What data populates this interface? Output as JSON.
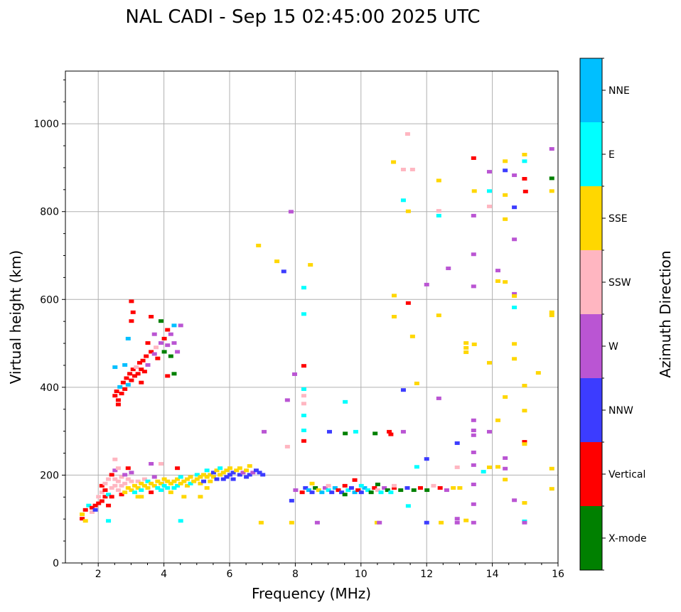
{
  "chart_data": {
    "type": "scatter",
    "title": "NAL CADI - Sep 15 02:45:00 2025 UTC",
    "xlabel": "Frequency (MHz)",
    "ylabel": "Virtual height (km)",
    "xlim": [
      1,
      16
    ],
    "ylim": [
      0,
      1120
    ],
    "xticks": [
      2,
      4,
      6,
      8,
      10,
      12,
      14,
      16
    ],
    "yticks": [
      0,
      200,
      400,
      600,
      800,
      1000
    ],
    "grid": true,
    "colorbar": {
      "label": "Azimuth Direction",
      "placement": "right",
      "categories": [
        {
          "name": "X-mode",
          "color": "#008000"
        },
        {
          "name": "Vertical",
          "color": "#ff0000"
        },
        {
          "name": "NNW",
          "color": "#3c3cff"
        },
        {
          "name": "W",
          "color": "#ba55d3"
        },
        {
          "name": "SSW",
          "color": "#ffb6c1"
        },
        {
          "name": "SSE",
          "color": "#ffd700"
        },
        {
          "name": "E",
          "color": "#00ffff"
        },
        {
          "name": "NNE",
          "color": "#00bfff"
        }
      ]
    },
    "point_format": [
      "frequency_MHz",
      "height_km",
      "category_index"
    ],
    "points": [
      [
        1.5,
        100,
        1
      ],
      [
        1.5,
        110,
        5
      ],
      [
        1.6,
        95,
        5
      ],
      [
        1.6,
        120,
        1
      ],
      [
        1.7,
        130,
        6
      ],
      [
        1.8,
        125,
        1
      ],
      [
        1.8,
        115,
        4
      ],
      [
        1.9,
        130,
        1
      ],
      [
        1.9,
        120,
        2
      ],
      [
        2.0,
        135,
        1
      ],
      [
        2.0,
        150,
        4
      ],
      [
        2.1,
        140,
        1
      ],
      [
        2.1,
        160,
        4
      ],
      [
        2.1,
        175,
        1
      ],
      [
        2.2,
        150,
        1
      ],
      [
        2.2,
        180,
        4
      ],
      [
        2.2,
        165,
        1
      ],
      [
        2.3,
        155,
        6
      ],
      [
        2.3,
        190,
        4
      ],
      [
        2.3,
        130,
        1
      ],
      [
        2.4,
        170,
        4
      ],
      [
        2.4,
        200,
        1
      ],
      [
        2.4,
        150,
        1
      ],
      [
        2.5,
        175,
        4
      ],
      [
        2.5,
        190,
        4
      ],
      [
        2.5,
        210,
        3
      ],
      [
        2.6,
        165,
        4
      ],
      [
        2.6,
        185,
        4
      ],
      [
        2.6,
        215,
        4
      ],
      [
        2.7,
        155,
        1
      ],
      [
        2.7,
        175,
        4
      ],
      [
        2.7,
        195,
        4
      ],
      [
        2.8,
        160,
        5
      ],
      [
        2.8,
        180,
        4
      ],
      [
        2.8,
        200,
        3
      ],
      [
        2.9,
        170,
        5
      ],
      [
        2.9,
        190,
        4
      ],
      [
        2.9,
        215,
        1
      ],
      [
        3.0,
        165,
        5
      ],
      [
        3.0,
        185,
        4
      ],
      [
        3.0,
        205,
        3
      ],
      [
        3.1,
        175,
        5
      ],
      [
        3.1,
        160,
        6
      ],
      [
        3.2,
        170,
        5
      ],
      [
        3.2,
        185,
        4
      ],
      [
        3.2,
        150,
        5
      ],
      [
        3.3,
        180,
        5
      ],
      [
        3.3,
        165,
        6
      ],
      [
        3.4,
        175,
        5
      ],
      [
        3.4,
        190,
        4
      ],
      [
        3.5,
        170,
        5
      ],
      [
        3.5,
        185,
        6
      ],
      [
        3.6,
        180,
        5
      ],
      [
        3.6,
        160,
        1
      ],
      [
        3.7,
        175,
        5
      ],
      [
        3.7,
        195,
        3
      ],
      [
        3.8,
        170,
        6
      ],
      [
        3.8,
        185,
        5
      ],
      [
        3.9,
        180,
        5
      ],
      [
        3.9,
        165,
        6
      ],
      [
        4.0,
        175,
        6
      ],
      [
        4.0,
        190,
        5
      ],
      [
        4.1,
        170,
        6
      ],
      [
        4.1,
        185,
        5
      ],
      [
        4.2,
        180,
        5
      ],
      [
        4.2,
        160,
        5
      ],
      [
        4.3,
        185,
        5
      ],
      [
        4.3,
        170,
        6
      ],
      [
        4.4,
        175,
        6
      ],
      [
        4.4,
        190,
        5
      ],
      [
        4.5,
        180,
        5
      ],
      [
        4.5,
        195,
        6
      ],
      [
        4.6,
        185,
        5
      ],
      [
        4.7,
        190,
        5
      ],
      [
        4.7,
        175,
        5
      ],
      [
        4.8,
        195,
        5
      ],
      [
        4.8,
        180,
        6
      ],
      [
        4.9,
        185,
        5
      ],
      [
        5.0,
        190,
        5
      ],
      [
        5.0,
        200,
        6
      ],
      [
        5.1,
        180,
        5
      ],
      [
        5.1,
        195,
        5
      ],
      [
        5.2,
        200,
        5
      ],
      [
        5.2,
        185,
        2
      ],
      [
        5.3,
        195,
        5
      ],
      [
        5.3,
        210,
        6
      ],
      [
        5.4,
        200,
        5
      ],
      [
        5.4,
        185,
        5
      ],
      [
        5.5,
        205,
        2
      ],
      [
        5.5,
        195,
        5
      ],
      [
        5.6,
        210,
        5
      ],
      [
        5.6,
        190,
        2
      ],
      [
        5.7,
        200,
        5
      ],
      [
        5.7,
        215,
        6
      ],
      [
        5.8,
        205,
        5
      ],
      [
        5.8,
        190,
        2
      ],
      [
        5.9,
        210,
        5
      ],
      [
        5.9,
        195,
        2
      ],
      [
        6.0,
        200,
        2
      ],
      [
        6.0,
        215,
        5
      ],
      [
        6.1,
        205,
        2
      ],
      [
        6.1,
        190,
        2
      ],
      [
        6.2,
        210,
        5
      ],
      [
        6.3,
        200,
        2
      ],
      [
        6.3,
        215,
        5
      ],
      [
        6.4,
        205,
        3
      ],
      [
        6.5,
        210,
        5
      ],
      [
        6.5,
        195,
        2
      ],
      [
        6.6,
        220,
        5
      ],
      [
        6.6,
        200,
        2
      ],
      [
        6.7,
        205,
        3
      ],
      [
        6.8,
        210,
        2
      ],
      [
        6.9,
        205,
        2
      ],
      [
        7.0,
        200,
        2
      ],
      [
        5.1,
        150,
        5
      ],
      [
        4.6,
        150,
        5
      ],
      [
        3.3,
        150,
        5
      ],
      [
        4.5,
        95,
        6
      ],
      [
        2.3,
        95,
        6
      ],
      [
        5.3,
        170,
        5
      ],
      [
        4.4,
        215,
        1
      ],
      [
        3.6,
        225,
        3
      ],
      [
        3.9,
        225,
        4
      ],
      [
        2.5,
        235,
        4
      ],
      [
        2.5,
        380,
        1
      ],
      [
        2.55,
        390,
        1
      ],
      [
        2.6,
        370,
        1
      ],
      [
        2.65,
        400,
        7
      ],
      [
        2.7,
        385,
        1
      ],
      [
        2.75,
        410,
        1
      ],
      [
        2.8,
        395,
        1
      ],
      [
        2.85,
        420,
        1
      ],
      [
        2.9,
        405,
        7
      ],
      [
        2.95,
        430,
        1
      ],
      [
        3.0,
        415,
        1
      ],
      [
        3.05,
        440,
        1
      ],
      [
        3.1,
        425,
        1
      ],
      [
        3.15,
        445,
        4
      ],
      [
        3.2,
        430,
        1
      ],
      [
        3.25,
        455,
        1
      ],
      [
        3.3,
        440,
        1
      ],
      [
        3.35,
        460,
        1
      ],
      [
        3.4,
        435,
        1
      ],
      [
        3.45,
        470,
        1
      ],
      [
        3.5,
        450,
        3
      ],
      [
        3.6,
        480,
        1
      ],
      [
        3.7,
        475,
        3
      ],
      [
        3.75,
        490,
        4
      ],
      [
        3.8,
        465,
        1
      ],
      [
        3.9,
        500,
        3
      ],
      [
        4.0,
        480,
        0
      ],
      [
        4.0,
        510,
        1
      ],
      [
        4.1,
        425,
        1
      ],
      [
        4.1,
        495,
        3
      ],
      [
        4.2,
        470,
        0
      ],
      [
        4.2,
        520,
        3
      ],
      [
        4.3,
        500,
        3
      ],
      [
        4.3,
        540,
        7
      ],
      [
        2.9,
        510,
        7
      ],
      [
        3.0,
        550,
        1
      ],
      [
        3.0,
        595,
        1
      ],
      [
        3.05,
        570,
        1
      ],
      [
        2.8,
        450,
        7
      ],
      [
        2.5,
        445,
        7
      ],
      [
        3.6,
        560,
        1
      ],
      [
        3.5,
        500,
        1
      ],
      [
        3.9,
        550,
        0
      ],
      [
        4.1,
        530,
        1
      ],
      [
        4.4,
        480,
        3
      ],
      [
        4.5,
        540,
        3
      ],
      [
        2.6,
        360,
        1
      ],
      [
        3.3,
        410,
        1
      ],
      [
        3.7,
        520,
        3
      ],
      [
        4.3,
        430,
        0
      ],
      [
        8.0,
        165,
        3
      ],
      [
        8.2,
        160,
        1
      ],
      [
        8.3,
        170,
        2
      ],
      [
        8.4,
        165,
        7
      ],
      [
        8.5,
        160,
        2
      ],
      [
        8.6,
        170,
        0
      ],
      [
        8.7,
        165,
        5
      ],
      [
        8.8,
        160,
        7
      ],
      [
        8.9,
        170,
        3
      ],
      [
        9.0,
        165,
        6
      ],
      [
        9.1,
        160,
        2
      ],
      [
        9.2,
        170,
        7
      ],
      [
        9.3,
        165,
        1
      ],
      [
        9.4,
        160,
        2
      ],
      [
        9.5,
        155,
        0
      ],
      [
        9.6,
        165,
        6
      ],
      [
        9.7,
        170,
        2
      ],
      [
        9.8,
        160,
        7
      ],
      [
        9.9,
        165,
        1
      ],
      [
        10.0,
        160,
        2
      ],
      [
        10.1,
        170,
        7
      ],
      [
        10.2,
        165,
        6
      ],
      [
        10.3,
        160,
        0
      ],
      [
        10.4,
        170,
        1
      ],
      [
        10.5,
        165,
        4
      ],
      [
        10.6,
        160,
        6
      ],
      [
        10.7,
        170,
        3
      ],
      [
        10.8,
        165,
        0
      ],
      [
        10.9,
        160,
        6
      ],
      [
        11.0,
        170,
        1
      ],
      [
        11.2,
        165,
        0
      ],
      [
        11.4,
        170,
        2
      ],
      [
        11.6,
        165,
        0
      ],
      [
        11.8,
        170,
        1
      ],
      [
        12.0,
        165,
        0
      ],
      [
        12.2,
        175,
        4
      ],
      [
        12.4,
        170,
        1
      ],
      [
        12.6,
        165,
        3
      ],
      [
        12.8,
        170,
        5
      ],
      [
        13.0,
        170,
        5
      ],
      [
        9.0,
        175,
        4
      ],
      [
        9.5,
        175,
        1
      ],
      [
        10.0,
        175,
        6
      ],
      [
        10.5,
        178,
        0
      ],
      [
        11.0,
        175,
        4
      ],
      [
        8.5,
        180,
        5
      ],
      [
        9.8,
        188,
        1
      ],
      [
        10.9,
        292,
        1
      ],
      [
        10.98,
        912,
        5
      ],
      [
        11.41,
        976,
        4
      ],
      [
        11.28,
        895,
        4
      ],
      [
        11.56,
        895,
        4
      ],
      [
        12.36,
        870,
        5
      ],
      [
        13.42,
        921,
        1
      ],
      [
        13.44,
        846,
        5
      ],
      [
        13.9,
        890,
        3
      ],
      [
        13.9,
        846,
        6
      ],
      [
        14.38,
        914,
        5
      ],
      [
        14.38,
        893,
        2
      ],
      [
        14.66,
        882,
        3
      ],
      [
        14.97,
        929,
        5
      ],
      [
        14.97,
        914,
        6
      ],
      [
        14.97,
        874,
        1
      ],
      [
        15.0,
        845,
        1
      ],
      [
        15.8,
        942,
        3
      ],
      [
        15.8,
        875,
        0
      ],
      [
        15.8,
        846,
        5
      ],
      [
        11.28,
        825,
        6
      ],
      [
        11.43,
        800,
        5
      ],
      [
        12.36,
        801,
        4
      ],
      [
        12.36,
        790,
        6
      ],
      [
        13.42,
        790,
        3
      ],
      [
        13.9,
        811,
        4
      ],
      [
        14.38,
        837,
        5
      ],
      [
        14.38,
        782,
        5
      ],
      [
        14.66,
        809,
        2
      ],
      [
        14.66,
        736,
        3
      ],
      [
        7.86,
        799,
        3
      ],
      [
        6.87,
        722,
        5
      ],
      [
        7.43,
        686,
        5
      ],
      [
        7.64,
        663,
        2
      ],
      [
        8.45,
        678,
        5
      ],
      [
        8.25,
        626,
        6
      ],
      [
        8.25,
        566,
        6
      ],
      [
        11.0,
        608,
        5
      ],
      [
        11.0,
        560,
        5
      ],
      [
        11.43,
        591,
        1
      ],
      [
        11.56,
        515,
        5
      ],
      [
        12.36,
        563,
        5
      ],
      [
        11.99,
        633,
        3
      ],
      [
        12.65,
        670,
        3
      ],
      [
        13.42,
        702,
        3
      ],
      [
        13.42,
        629,
        3
      ],
      [
        14.16,
        665,
        3
      ],
      [
        14.16,
        641,
        5
      ],
      [
        14.38,
        639,
        5
      ],
      [
        14.66,
        612,
        3
      ],
      [
        14.66,
        607,
        5
      ],
      [
        14.66,
        581,
        6
      ],
      [
        15.8,
        570,
        5
      ],
      [
        15.8,
        563,
        5
      ],
      [
        13.19,
        500,
        5
      ],
      [
        13.19,
        489,
        5
      ],
      [
        13.19,
        479,
        5
      ],
      [
        13.44,
        497,
        5
      ],
      [
        13.9,
        455,
        5
      ],
      [
        14.66,
        498,
        5
      ],
      [
        14.66,
        464,
        5
      ],
      [
        15.39,
        432,
        5
      ],
      [
        14.97,
        403,
        5
      ],
      [
        8.25,
        448,
        1
      ],
      [
        8.25,
        395,
        6
      ],
      [
        11.28,
        393,
        2
      ],
      [
        11.69,
        408,
        5
      ],
      [
        12.36,
        374,
        3
      ],
      [
        7.75,
        370,
        3
      ],
      [
        7.97,
        429,
        3
      ],
      [
        8.25,
        380,
        4
      ],
      [
        8.25,
        362,
        4
      ],
      [
        8.25,
        335,
        6
      ],
      [
        8.25,
        301,
        6
      ],
      [
        8.25,
        277,
        1
      ],
      [
        9.51,
        366,
        6
      ],
      [
        9.03,
        298,
        2
      ],
      [
        9.51,
        294,
        0
      ],
      [
        9.83,
        298,
        6
      ],
      [
        10.42,
        294,
        0
      ],
      [
        10.85,
        298,
        1
      ],
      [
        11.28,
        298,
        3
      ],
      [
        12.92,
        272,
        2
      ],
      [
        13.42,
        301,
        3
      ],
      [
        13.42,
        324,
        3
      ],
      [
        13.42,
        290,
        3
      ],
      [
        13.42,
        251,
        3
      ],
      [
        13.42,
        222,
        3
      ],
      [
        13.9,
        298,
        3
      ],
      [
        14.16,
        324,
        5
      ],
      [
        14.38,
        238,
        3
      ],
      [
        14.97,
        275,
        1
      ],
      [
        14.97,
        270,
        5
      ],
      [
        14.97,
        346,
        5
      ],
      [
        14.38,
        377,
        5
      ],
      [
        7.04,
        298,
        3
      ],
      [
        7.75,
        264,
        4
      ],
      [
        11.99,
        236,
        2
      ],
      [
        11.69,
        218,
        6
      ],
      [
        15.8,
        214,
        5
      ],
      [
        15.8,
        168,
        5
      ],
      [
        13.42,
        178,
        3
      ],
      [
        13.42,
        133,
        3
      ],
      [
        14.38,
        189,
        5
      ],
      [
        14.38,
        214,
        3
      ],
      [
        14.66,
        142,
        3
      ],
      [
        14.97,
        136,
        5
      ],
      [
        14.97,
        94,
        6
      ],
      [
        14.97,
        91,
        3
      ],
      [
        13.42,
        91,
        3
      ],
      [
        12.92,
        91,
        3
      ],
      [
        12.43,
        91,
        5
      ],
      [
        12.92,
        100,
        3
      ],
      [
        13.19,
        96,
        5
      ],
      [
        11.99,
        91,
        2
      ],
      [
        10.48,
        91,
        5
      ],
      [
        10.55,
        91,
        3
      ],
      [
        8.66,
        91,
        3
      ],
      [
        7.88,
        91,
        5
      ],
      [
        6.95,
        91,
        5
      ],
      [
        11.43,
        129,
        6
      ],
      [
        12.92,
        217,
        4
      ],
      [
        14.16,
        218,
        5
      ],
      [
        13.9,
        217,
        5
      ],
      [
        13.72,
        207,
        6
      ],
      [
        7.88,
        141,
        2
      ]
    ]
  }
}
